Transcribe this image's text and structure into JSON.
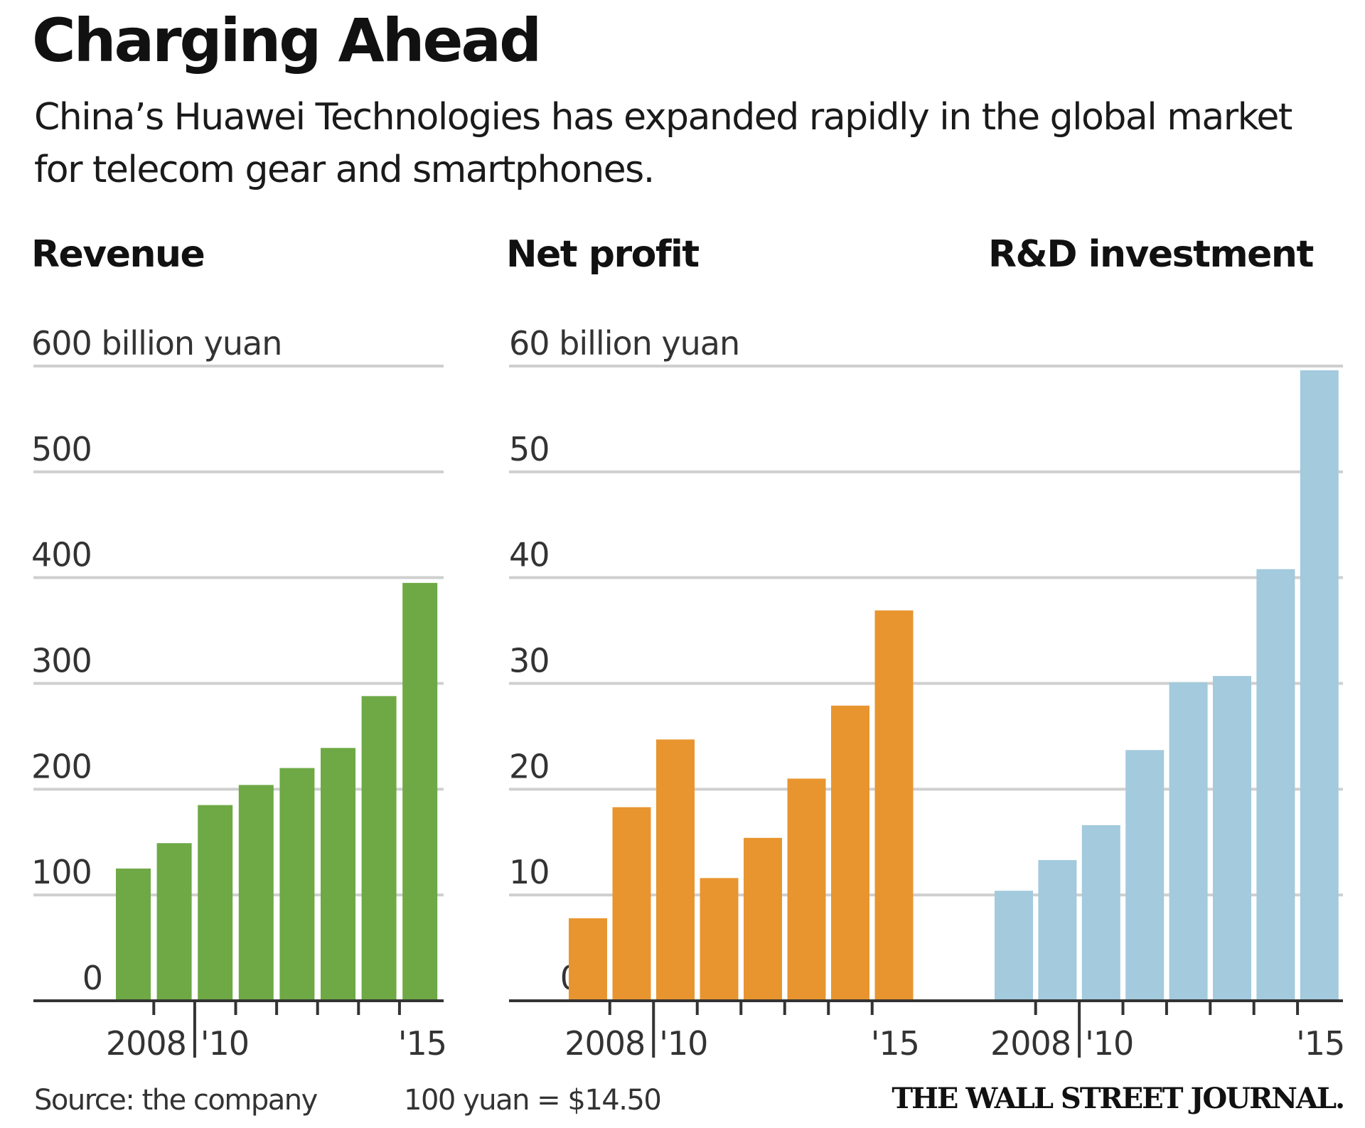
{
  "header": {
    "title": "Charging Ahead",
    "subtitle": "China’s Huawei Technologies has expanded rapidly in the global market for telecom gear and smartphones."
  },
  "footer": {
    "source": "Source: the company",
    "conversion": "100 yuan = $14.50",
    "brand": "THE WALL STREET JOURNAL."
  },
  "chart_data": [
    {
      "type": "bar",
      "title": "Revenue",
      "unit_label": "600 billion yuan",
      "categories": [
        "2008",
        "2009",
        "2010",
        "2011",
        "2012",
        "2013",
        "2014",
        "2015"
      ],
      "values": [
        125,
        149,
        185,
        204,
        220,
        239,
        288,
        395
      ],
      "ylim": [
        0,
        600
      ],
      "yticks": [
        0,
        100,
        200,
        300,
        400,
        500,
        600
      ],
      "ytick_labels": [
        "0",
        "100",
        "200",
        "300",
        "400",
        "500",
        "600 billion yuan"
      ],
      "xtick_labels": [
        "2008",
        "'10",
        "'15"
      ],
      "color": "#6ea945",
      "grid": true
    },
    {
      "type": "bar",
      "title": "Net profit",
      "unit_label": "60 billion yuan",
      "categories": [
        "2008",
        "2009",
        "2010",
        "2011",
        "2012",
        "2013",
        "2014",
        "2015"
      ],
      "values": [
        7.8,
        18.3,
        24.7,
        11.6,
        15.4,
        21.0,
        27.9,
        36.9
      ],
      "ylim": [
        0,
        60
      ],
      "yticks": [
        0,
        10,
        20,
        30,
        40,
        50,
        60
      ],
      "ytick_labels": [
        "0",
        "10",
        "20",
        "30",
        "40",
        "50",
        "60 billion yuan"
      ],
      "xtick_labels": [
        "2008",
        "'10",
        "'15"
      ],
      "color": "#e8952f",
      "grid": true
    },
    {
      "type": "bar",
      "title": "R&D investment",
      "unit_label": "60 billion yuan",
      "categories": [
        "2008",
        "2009",
        "2010",
        "2011",
        "2012",
        "2013",
        "2014",
        "2015"
      ],
      "values": [
        10.4,
        13.3,
        16.6,
        23.7,
        30.1,
        30.7,
        40.8,
        59.6
      ],
      "ylim": [
        0,
        60
      ],
      "yticks": [
        0,
        10,
        20,
        30,
        40,
        50,
        60
      ],
      "ytick_labels": [],
      "xtick_labels": [
        "2008",
        "'10",
        "'15"
      ],
      "color": "#a3cadd",
      "grid": true
    }
  ]
}
